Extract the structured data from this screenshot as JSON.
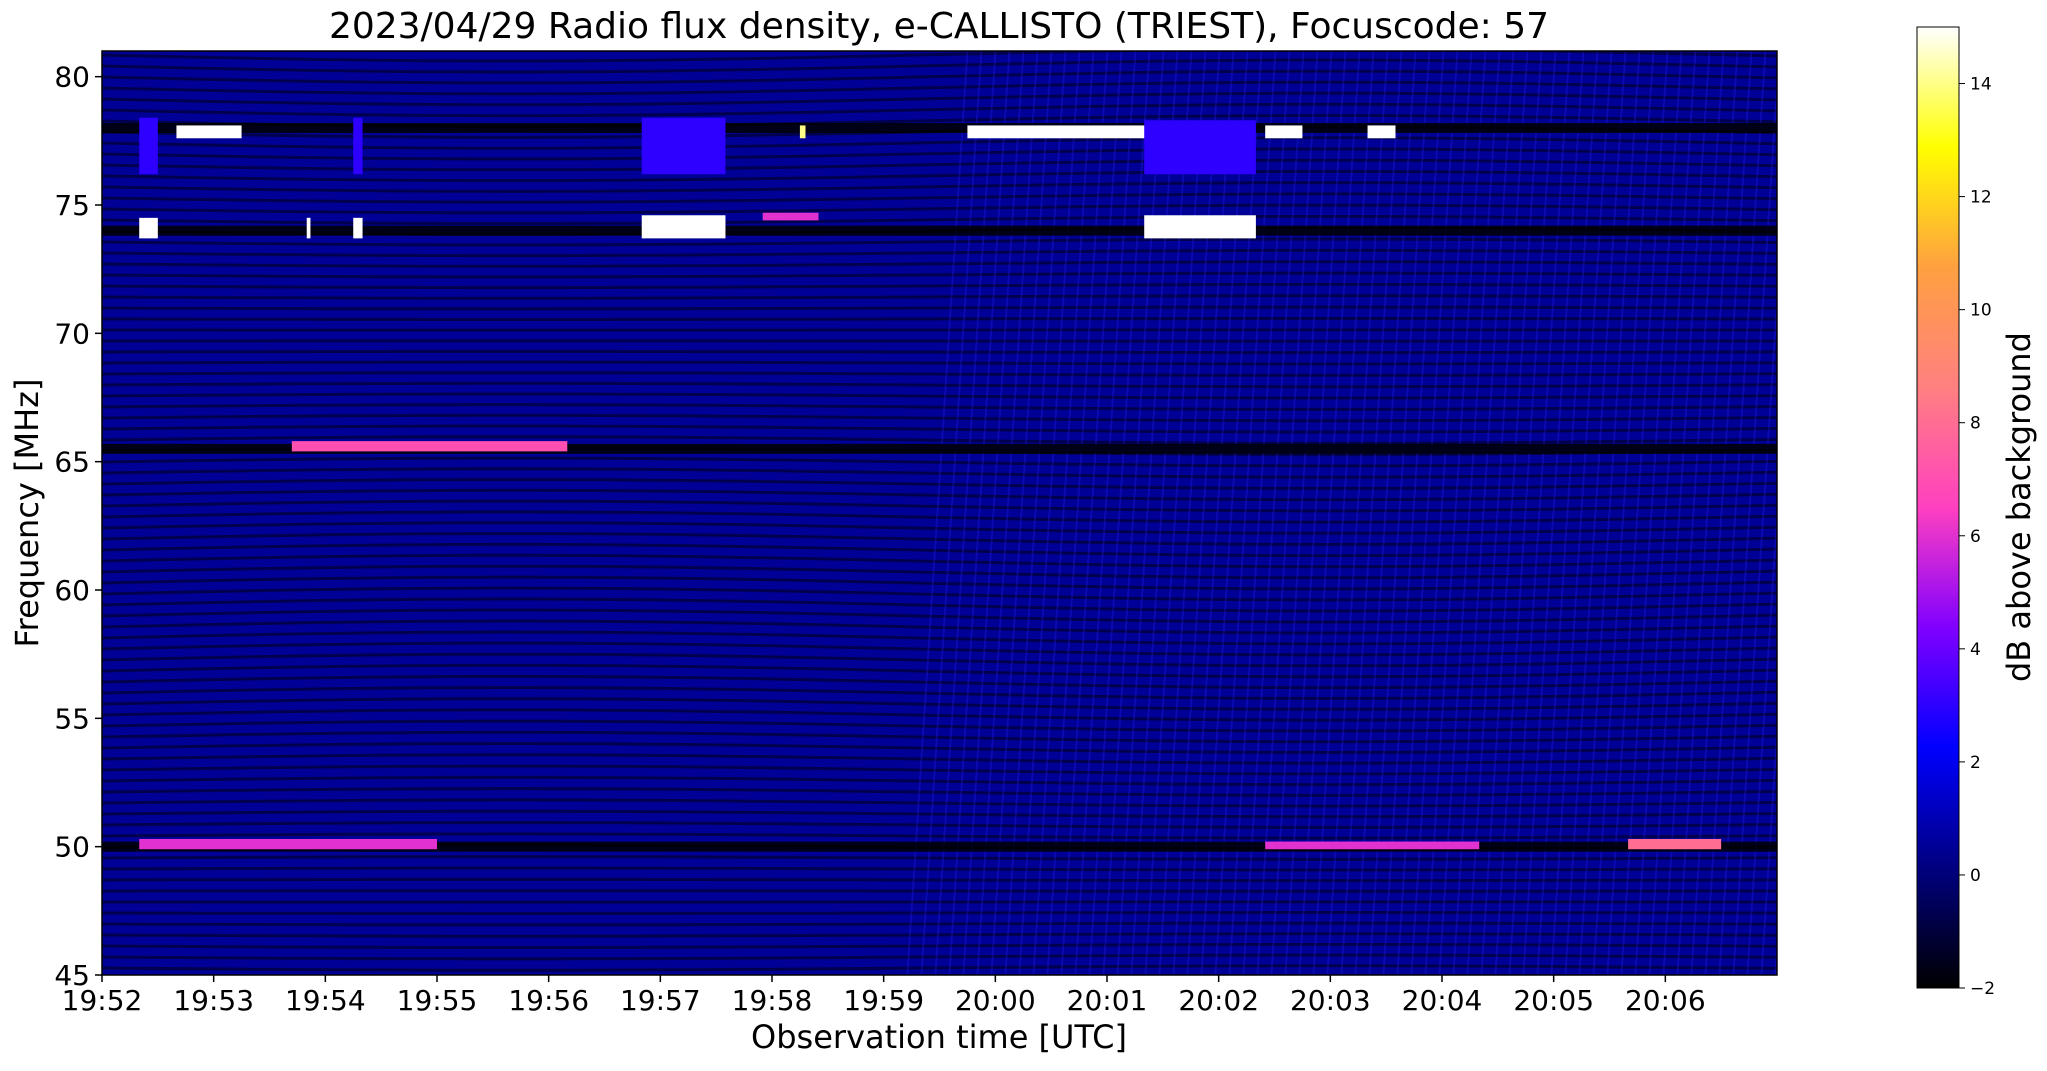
{
  "chart_data": {
    "type": "heatmap",
    "title": "2023/04/29  Radio flux density, e-CALLISTO (TRIEST), Focuscode: 57",
    "xlabel": "Observation time [UTC]",
    "ylabel": "Frequency [MHz]",
    "colorbar_label": "dB above background",
    "x_ticks": [
      "19:52",
      "19:53",
      "19:54",
      "19:55",
      "19:56",
      "19:57",
      "19:58",
      "19:59",
      "20:00",
      "20:01",
      "20:02",
      "20:03",
      "20:04",
      "20:05",
      "20:06"
    ],
    "x_range": [
      "19:52",
      "20:07"
    ],
    "y_ticks": [
      45,
      50,
      55,
      60,
      65,
      70,
      75,
      80
    ],
    "y_range": [
      45,
      81
    ],
    "colorbar_ticks": [
      -2,
      0,
      2,
      4,
      6,
      8,
      10,
      12,
      14
    ],
    "colorbar_range": [
      -2,
      15
    ],
    "colormap": [
      "#000000",
      "#000080",
      "#0000ff",
      "#8000ff",
      "#ff40c0",
      "#ff8080",
      "#ffa040",
      "#ffff00",
      "#ffffff"
    ],
    "background_level_db": 0.5,
    "dark_bands_mhz": [
      78,
      74,
      65.5,
      50
    ],
    "events": [
      {
        "start": "19:52:20",
        "end": "19:52:30",
        "freq": [
          73.7,
          74.5
        ],
        "db": 15
      },
      {
        "start": "19:52:20",
        "end": "19:52:30",
        "freq": [
          76.2,
          78.4
        ],
        "db": 3
      },
      {
        "start": "19:52:40",
        "end": "19:53:15",
        "freq": [
          77.6,
          78.1
        ],
        "db": 15
      },
      {
        "start": "19:53:50",
        "end": "19:53:52",
        "freq": [
          73.7,
          74.5
        ],
        "db": 15
      },
      {
        "start": "19:54:15",
        "end": "19:54:20",
        "freq": [
          73.7,
          74.5
        ],
        "db": 15
      },
      {
        "start": "19:54:15",
        "end": "19:54:20",
        "freq": [
          76.2,
          78.4
        ],
        "db": 3
      },
      {
        "start": "19:53:42",
        "end": "19:56:10",
        "freq": [
          65.4,
          65.8
        ],
        "db": 7
      },
      {
        "start": "19:56:50",
        "end": "19:57:35",
        "freq": [
          73.7,
          74.6
        ],
        "db": 15
      },
      {
        "start": "19:56:50",
        "end": "19:57:35",
        "freq": [
          76.2,
          78.4
        ],
        "db": 3
      },
      {
        "start": "19:58:15",
        "end": "19:58:18",
        "freq": [
          77.6,
          78.1
        ],
        "db": 14
      },
      {
        "start": "19:57:55",
        "end": "19:58:25",
        "freq": [
          74.4,
          74.7
        ],
        "db": 6
      },
      {
        "start": "19:59:45",
        "end": "20:01:50",
        "freq": [
          77.6,
          78.1
        ],
        "db": 15
      },
      {
        "start": "20:01:20",
        "end": "20:02:20",
        "freq": [
          73.7,
          74.6
        ],
        "db": 15
      },
      {
        "start": "20:01:20",
        "end": "20:02:20",
        "freq": [
          76.2,
          78.3
        ],
        "db": 3
      },
      {
        "start": "20:02:25",
        "end": "20:02:45",
        "freq": [
          77.6,
          78.1
        ],
        "db": 15
      },
      {
        "start": "20:03:20",
        "end": "20:03:35",
        "freq": [
          77.6,
          78.1
        ],
        "db": 15
      },
      {
        "start": "19:52:20",
        "end": "19:55:00",
        "freq": [
          49.9,
          50.3
        ],
        "db": 6
      },
      {
        "start": "20:02:25",
        "end": "20:04:20",
        "freq": [
          49.9,
          50.2
        ],
        "db": 6
      },
      {
        "start": "20:05:40",
        "end": "20:06:30",
        "freq": [
          49.9,
          50.3
        ],
        "db": 8
      }
    ]
  }
}
